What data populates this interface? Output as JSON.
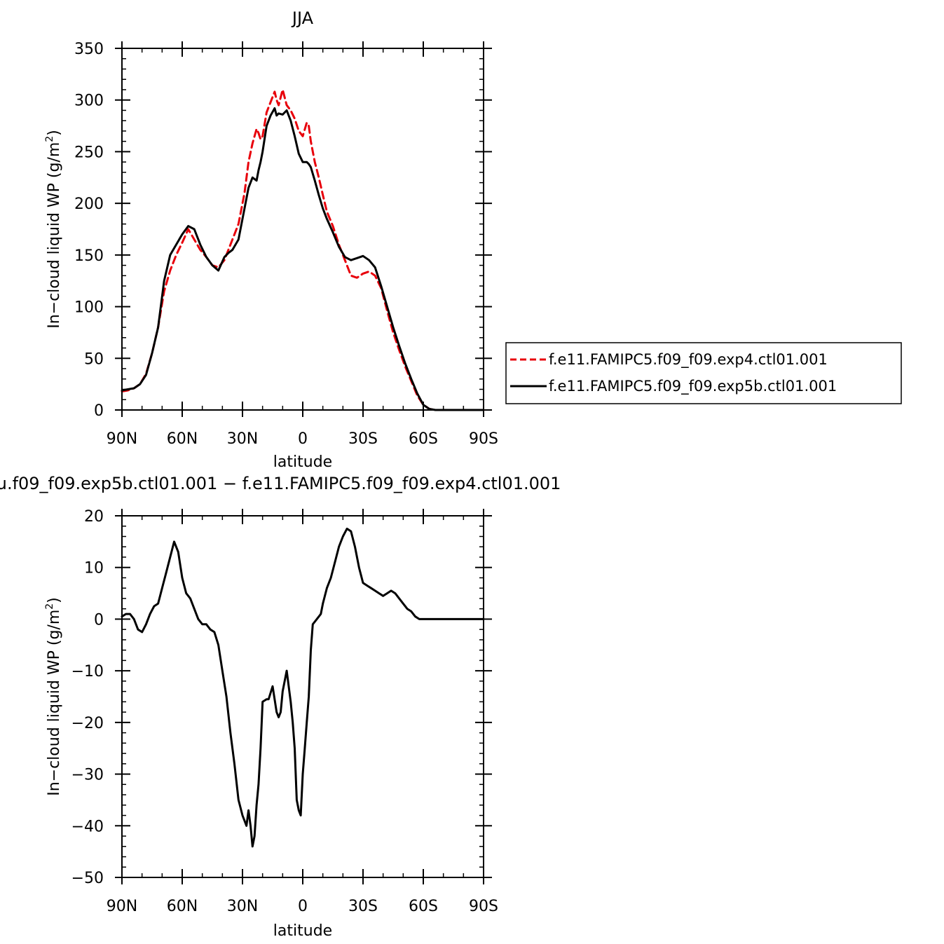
{
  "chart_data": [
    {
      "type": "line",
      "title": "JJA",
      "xlabel": "latitude",
      "ylabel": "In−cloud liquid WP (g/m",
      "ylabel_sup": "2",
      "ylabel_end": ")",
      "xlim": [
        90,
        -90
      ],
      "ylim": [
        0,
        350
      ],
      "xticks": [
        90,
        60,
        30,
        0,
        -30,
        -60,
        -90
      ],
      "xtick_labels": [
        "90N",
        "60N",
        "30N",
        "0",
        "30S",
        "60S",
        "90S"
      ],
      "yticks": [
        0,
        50,
        100,
        150,
        200,
        250,
        300,
        350
      ],
      "ytick_labels": [
        "0",
        "50",
        "100",
        "150",
        "200",
        "250",
        "300",
        "350"
      ],
      "legend_position": "right",
      "series": [
        {
          "name": "f.e11.FAMIPC5.f09_f09.exp4.ctl01.001",
          "color": "#e8000b",
          "dash": "dashed",
          "x": [
            90,
            87,
            84,
            81,
            78,
            75,
            72,
            69,
            66,
            63,
            60,
            57,
            54,
            51,
            48,
            45,
            42,
            39,
            37,
            35,
            32,
            29,
            27,
            25,
            23,
            22,
            21,
            20,
            18,
            16,
            14,
            13,
            12,
            10,
            8,
            6,
            4,
            2,
            0,
            -2,
            -3,
            -4,
            -6,
            -8,
            -10,
            -12,
            -15,
            -18,
            -21,
            -24,
            -27,
            -30,
            -33,
            -36,
            -39,
            -42,
            -45,
            -48,
            -51,
            -54,
            -57,
            -60,
            -63,
            -66,
            -68,
            -70,
            -72,
            -75,
            -78,
            -81,
            -84,
            -87,
            -90
          ],
          "y": [
            18,
            19,
            21,
            25,
            35,
            55,
            80,
            115,
            135,
            150,
            162,
            175,
            165,
            155,
            148,
            140,
            138,
            145,
            155,
            165,
            180,
            210,
            240,
            258,
            272,
            268,
            262,
            265,
            288,
            298,
            308,
            300,
            295,
            310,
            295,
            290,
            282,
            270,
            265,
            278,
            275,
            260,
            240,
            225,
            208,
            192,
            178,
            160,
            145,
            130,
            128,
            132,
            134,
            130,
            118,
            96,
            75,
            58,
            42,
            28,
            14,
            5,
            1,
            0,
            0,
            0,
            0,
            0,
            0,
            0,
            0,
            0,
            0
          ]
        },
        {
          "name": "f.e11.FAMIPC5.f09_f09.exp5b.ctl01.001",
          "color": "#000000",
          "dash": "solid",
          "x": [
            90,
            87,
            84,
            81,
            78,
            75,
            72,
            69,
            66,
            63,
            60,
            57,
            54,
            51,
            48,
            45,
            42,
            39,
            37,
            35,
            32,
            29,
            27,
            25,
            23,
            22,
            21,
            20,
            18,
            16,
            14,
            13,
            12,
            10,
            8,
            6,
            4,
            2,
            0,
            -2,
            -3,
            -4,
            -6,
            -8,
            -10,
            -12,
            -15,
            -18,
            -21,
            -24,
            -27,
            -30,
            -33,
            -36,
            -39,
            -42,
            -45,
            -48,
            -51,
            -54,
            -57,
            -60,
            -63,
            -66,
            -68,
            -70,
            -72,
            -75,
            -78,
            -81,
            -84,
            -87,
            -90
          ],
          "y": [
            19,
            20,
            21,
            25,
            34,
            55,
            80,
            125,
            150,
            160,
            170,
            178,
            175,
            160,
            148,
            140,
            135,
            148,
            152,
            155,
            165,
            195,
            215,
            225,
            222,
            232,
            240,
            250,
            275,
            285,
            292,
            285,
            287,
            286,
            290,
            280,
            265,
            248,
            240,
            240,
            238,
            235,
            222,
            208,
            195,
            185,
            172,
            158,
            148,
            145,
            147,
            149,
            145,
            138,
            120,
            100,
            80,
            62,
            45,
            30,
            16,
            5,
            1,
            0,
            0,
            0,
            0,
            0,
            0,
            0,
            0,
            0,
            0
          ]
        }
      ]
    },
    {
      "type": "line",
      "title": ".f09_f09.exp5b.ctl01.001  −  f.e11.FAMIPC5.f09_f09.exp4.ctl01.001",
      "title_prefix_glyph": "ɹ",
      "xlabel": "latitude",
      "ylabel": "In−cloud liquid WP (g/m",
      "ylabel_sup": "2",
      "ylabel_end": ")",
      "xlim": [
        90,
        -90
      ],
      "ylim": [
        -50,
        20
      ],
      "xticks": [
        90,
        60,
        30,
        0,
        -30,
        -60,
        -90
      ],
      "xtick_labels": [
        "90N",
        "60N",
        "30N",
        "0",
        "30S",
        "60S",
        "90S"
      ],
      "yticks": [
        -50,
        -40,
        -30,
        -20,
        -10,
        0,
        10,
        20
      ],
      "ytick_labels": [
        "−50",
        "−40",
        "−30",
        "−20",
        "−10",
        "0",
        "10",
        "20"
      ],
      "series": [
        {
          "color": "#000000",
          "dash": "solid",
          "x": [
            90,
            88,
            86,
            84,
            82,
            80,
            78,
            76,
            74,
            72,
            70,
            68,
            66,
            64,
            62,
            60,
            58,
            56,
            54,
            52,
            50,
            48,
            46,
            44,
            42,
            40,
            38,
            36,
            34,
            32,
            30,
            28,
            27,
            26,
            25,
            24,
            23,
            22,
            21,
            20,
            18,
            17,
            15,
            13,
            12,
            11,
            10,
            8,
            6,
            5,
            4,
            3,
            2,
            1,
            0,
            -1,
            -2,
            -3,
            -4,
            -5,
            -7,
            -9,
            -10,
            -12,
            -14,
            -16,
            -18,
            -20,
            -22,
            -24,
            -26,
            -28,
            -30,
            -32,
            -34,
            -36,
            -38,
            -40,
            -42,
            -44,
            -46,
            -48,
            -50,
            -52,
            -54,
            -56,
            -58,
            -60,
            -62,
            -64,
            -66,
            -68,
            -70,
            -75,
            -80,
            -85,
            -90
          ],
          "y": [
            0.5,
            1,
            1,
            0,
            -2,
            -2.5,
            -1,
            1,
            2.5,
            3,
            6,
            9,
            12,
            15,
            13,
            8,
            5,
            4,
            2,
            0,
            -1,
            -1,
            -2,
            -2.5,
            -5,
            -10,
            -15,
            -22,
            -28,
            -35,
            -38,
            -40,
            -37,
            -40,
            -44,
            -42,
            -36,
            -32,
            -25,
            -16,
            -15.5,
            -15.5,
            -13,
            -18,
            -19,
            -18,
            -14,
            -10,
            -16,
            -20,
            -25,
            -35,
            -37,
            -38,
            -30,
            -25,
            -20,
            -15,
            -6,
            -1,
            0,
            1,
            3,
            6,
            8,
            11,
            14,
            16,
            17.5,
            17,
            14,
            10,
            7,
            6.5,
            6,
            5.5,
            5,
            4.5,
            5,
            5.5,
            5,
            4,
            3,
            2,
            1.5,
            0.5,
            0,
            0,
            0,
            0,
            0,
            0,
            0,
            0,
            0,
            0,
            0
          ]
        }
      ]
    }
  ]
}
